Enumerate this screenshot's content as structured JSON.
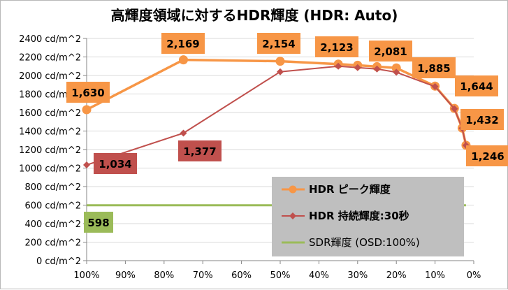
{
  "chart_data": {
    "type": "line",
    "title": "高輝度領域に対するHDR輝度 (HDR: Auto)",
    "xlabel": "",
    "ylabel": "",
    "x_reversed": true,
    "xlim": [
      0,
      100
    ],
    "ylim": [
      0,
      2400
    ],
    "grid": "horizontal",
    "legend_position": "bottom-right",
    "x_ticks": [
      "100%",
      "90%",
      "80%",
      "70%",
      "60%",
      "50%",
      "40%",
      "30%",
      "20%",
      "10%",
      "0%"
    ],
    "x_tick_values": [
      100,
      90,
      80,
      70,
      60,
      50,
      40,
      30,
      20,
      10,
      0
    ],
    "y_ticks": [
      "0 cd/m^2",
      "200 cd/m^2",
      "400 cd/m^2",
      "600 cd/m^2",
      "800 cd/m^2",
      "1000 cd/m^2",
      "1200 cd/m^2",
      "1400 cd/m^2",
      "1600 cd/m^2",
      "1800 cd/m^2",
      "2000 cd/m^2",
      "2200 cd/m^2",
      "2400 cd/m^2"
    ],
    "y_tick_values": [
      0,
      200,
      400,
      600,
      800,
      1000,
      1200,
      1400,
      1600,
      1800,
      2000,
      2200,
      2400
    ],
    "series": [
      {
        "name": "HDR ピーク輝度",
        "color": "#f79646",
        "label_bg": "#f79646",
        "marker": "circle",
        "x": [
          100,
          75,
          50,
          35,
          30,
          25,
          20,
          10,
          5,
          3,
          2
        ],
        "values": [
          1630,
          2169,
          2154,
          2123,
          2110,
          2095,
          2081,
          1885,
          1644,
          1432,
          1246
        ],
        "labels": [
          {
            "index": 0,
            "text": "1,630"
          },
          {
            "index": 1,
            "text": "2,169"
          },
          {
            "index": 2,
            "text": "2,154"
          },
          {
            "index": 3,
            "text": "2,123"
          },
          {
            "index": 6,
            "text": "2,081"
          },
          {
            "index": 7,
            "text": "1,885"
          },
          {
            "index": 8,
            "text": "1,644"
          },
          {
            "index": 9,
            "text": "1,432"
          },
          {
            "index": 10,
            "text": "1,246"
          }
        ]
      },
      {
        "name": "HDR 持続輝度:30秒",
        "color": "#c0504d",
        "label_bg": "#c0504d",
        "marker": "diamond",
        "x": [
          100,
          75,
          50,
          35,
          30,
          25,
          20,
          10,
          5,
          3,
          2
        ],
        "values": [
          1034,
          1377,
          2040,
          2100,
          2085,
          2070,
          2035,
          1880,
          1640,
          1430,
          1245
        ],
        "labels": [
          {
            "index": 0,
            "text": "1,034"
          },
          {
            "index": 1,
            "text": "1,377"
          }
        ]
      },
      {
        "name": "SDR輝度 (OSD:100%)",
        "color": "#9bbb59",
        "label_bg": "#9bbb59",
        "marker": "none",
        "x": [
          100,
          2
        ],
        "values": [
          598,
          598
        ],
        "labels": [
          {
            "index": 0,
            "text": "598"
          }
        ]
      }
    ]
  }
}
